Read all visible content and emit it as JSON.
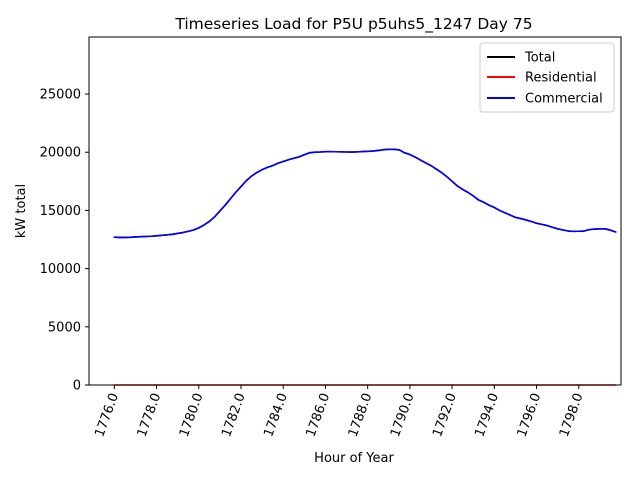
{
  "chart_data": {
    "type": "line",
    "title": "Timeseries Load for P5U p5uhs5_1247  Day 75",
    "xlabel": "Hour of Year",
    "ylabel": "kW total",
    "xlim": [
      1774.8,
      1800.0
    ],
    "ylim": [
      0,
      29900
    ],
    "xticks": [
      1776,
      1778,
      1780,
      1782,
      1784,
      1786,
      1788,
      1790,
      1792,
      1794,
      1796,
      1798
    ],
    "xtick_labels": [
      "1776.0",
      "1778.0",
      "1780.0",
      "1782.0",
      "1784.0",
      "1786.0",
      "1788.0",
      "1790.0",
      "1792.0",
      "1794.0",
      "1796.0",
      "1798.0"
    ],
    "yticks": [
      0,
      5000,
      10000,
      15000,
      20000,
      25000
    ],
    "ytick_labels": [
      "0",
      "5000",
      "10000",
      "15000",
      "20000",
      "25000"
    ],
    "grid": false,
    "legend_position": "top-right",
    "x": [
      1776.0,
      1776.25,
      1776.5,
      1776.75,
      1777.0,
      1777.25,
      1777.5,
      1777.75,
      1778.0,
      1778.25,
      1778.5,
      1778.75,
      1779.0,
      1779.25,
      1779.5,
      1779.75,
      1780.0,
      1780.25,
      1780.5,
      1780.75,
      1781.0,
      1781.25,
      1781.5,
      1781.75,
      1782.0,
      1782.25,
      1782.5,
      1782.75,
      1783.0,
      1783.25,
      1783.5,
      1783.75,
      1784.0,
      1784.25,
      1784.5,
      1784.75,
      1785.0,
      1785.25,
      1785.5,
      1785.75,
      1786.0,
      1786.25,
      1786.5,
      1786.75,
      1787.0,
      1787.25,
      1787.5,
      1787.75,
      1788.0,
      1788.25,
      1788.5,
      1788.75,
      1789.0,
      1789.25,
      1789.5,
      1789.75,
      1790.0,
      1790.25,
      1790.5,
      1790.75,
      1791.0,
      1791.25,
      1791.5,
      1791.75,
      1792.0,
      1792.25,
      1792.5,
      1792.75,
      1793.0,
      1793.25,
      1793.5,
      1793.75,
      1794.0,
      1794.25,
      1794.5,
      1794.75,
      1795.0,
      1795.25,
      1795.5,
      1795.75,
      1796.0,
      1796.25,
      1796.5,
      1796.75,
      1797.0,
      1797.25,
      1797.5,
      1797.75,
      1798.0,
      1798.25,
      1798.5,
      1798.75,
      1799.0,
      1799.25,
      1799.5,
      1799.75
    ],
    "series": [
      {
        "name": "Total",
        "color": "#000000",
        "values": [
          12700,
          12680,
          12680,
          12690,
          12720,
          12740,
          12760,
          12780,
          12820,
          12860,
          12900,
          12950,
          13020,
          13100,
          13200,
          13320,
          13500,
          13750,
          14050,
          14450,
          14950,
          15450,
          16000,
          16550,
          17050,
          17550,
          17950,
          18250,
          18500,
          18700,
          18850,
          19050,
          19200,
          19350,
          19480,
          19600,
          19780,
          19950,
          20000,
          20020,
          20050,
          20050,
          20040,
          20030,
          20020,
          20010,
          20030,
          20060,
          20080,
          20100,
          20150,
          20220,
          20250,
          20250,
          20200,
          19950,
          19800,
          19580,
          19330,
          19080,
          18850,
          18550,
          18250,
          17900,
          17500,
          17100,
          16800,
          16550,
          16250,
          15900,
          15700,
          15450,
          15250,
          15000,
          14800,
          14600,
          14400,
          14300,
          14180,
          14050,
          13900,
          13800,
          13700,
          13550,
          13420,
          13320,
          13230,
          13200,
          13210,
          13230,
          13350,
          13400,
          13420,
          13420,
          13300,
          13150
        ]
      },
      {
        "name": "Residential",
        "color": "#ff0000",
        "values": [
          0,
          0,
          0,
          0,
          0,
          0,
          0,
          0,
          0,
          0,
          0,
          0,
          0,
          0,
          0,
          0,
          0,
          0,
          0,
          0,
          0,
          0,
          0,
          0,
          0,
          0,
          0,
          0,
          0,
          0,
          0,
          0,
          0,
          0,
          0,
          0,
          0,
          0,
          0,
          0,
          0,
          0,
          0,
          0,
          0,
          0,
          0,
          0,
          0,
          0,
          0,
          0,
          0,
          0,
          0,
          0,
          0,
          0,
          0,
          0,
          0,
          0,
          0,
          0,
          0,
          0,
          0,
          0,
          0,
          0,
          0,
          0,
          0,
          0,
          0,
          0,
          0,
          0,
          0,
          0,
          0,
          0,
          0,
          0,
          0,
          0,
          0,
          0,
          0,
          0,
          0,
          0,
          0,
          0,
          0,
          0
        ]
      },
      {
        "name": "Commercial",
        "color": "#0000ff",
        "values": [
          12700,
          12680,
          12680,
          12690,
          12720,
          12740,
          12760,
          12780,
          12820,
          12860,
          12900,
          12950,
          13020,
          13100,
          13200,
          13320,
          13500,
          13750,
          14050,
          14450,
          14950,
          15450,
          16000,
          16550,
          17050,
          17550,
          17950,
          18250,
          18500,
          18700,
          18850,
          19050,
          19200,
          19350,
          19480,
          19600,
          19780,
          19950,
          20000,
          20020,
          20050,
          20050,
          20040,
          20030,
          20020,
          20010,
          20030,
          20060,
          20080,
          20100,
          20150,
          20220,
          20250,
          20250,
          20200,
          19950,
          19800,
          19580,
          19330,
          19080,
          18850,
          18550,
          18250,
          17900,
          17500,
          17100,
          16800,
          16550,
          16250,
          15900,
          15700,
          15450,
          15250,
          15000,
          14800,
          14600,
          14400,
          14300,
          14180,
          14050,
          13900,
          13800,
          13700,
          13550,
          13420,
          13320,
          13230,
          13200,
          13210,
          13230,
          13350,
          13400,
          13420,
          13420,
          13300,
          13150
        ]
      }
    ]
  }
}
